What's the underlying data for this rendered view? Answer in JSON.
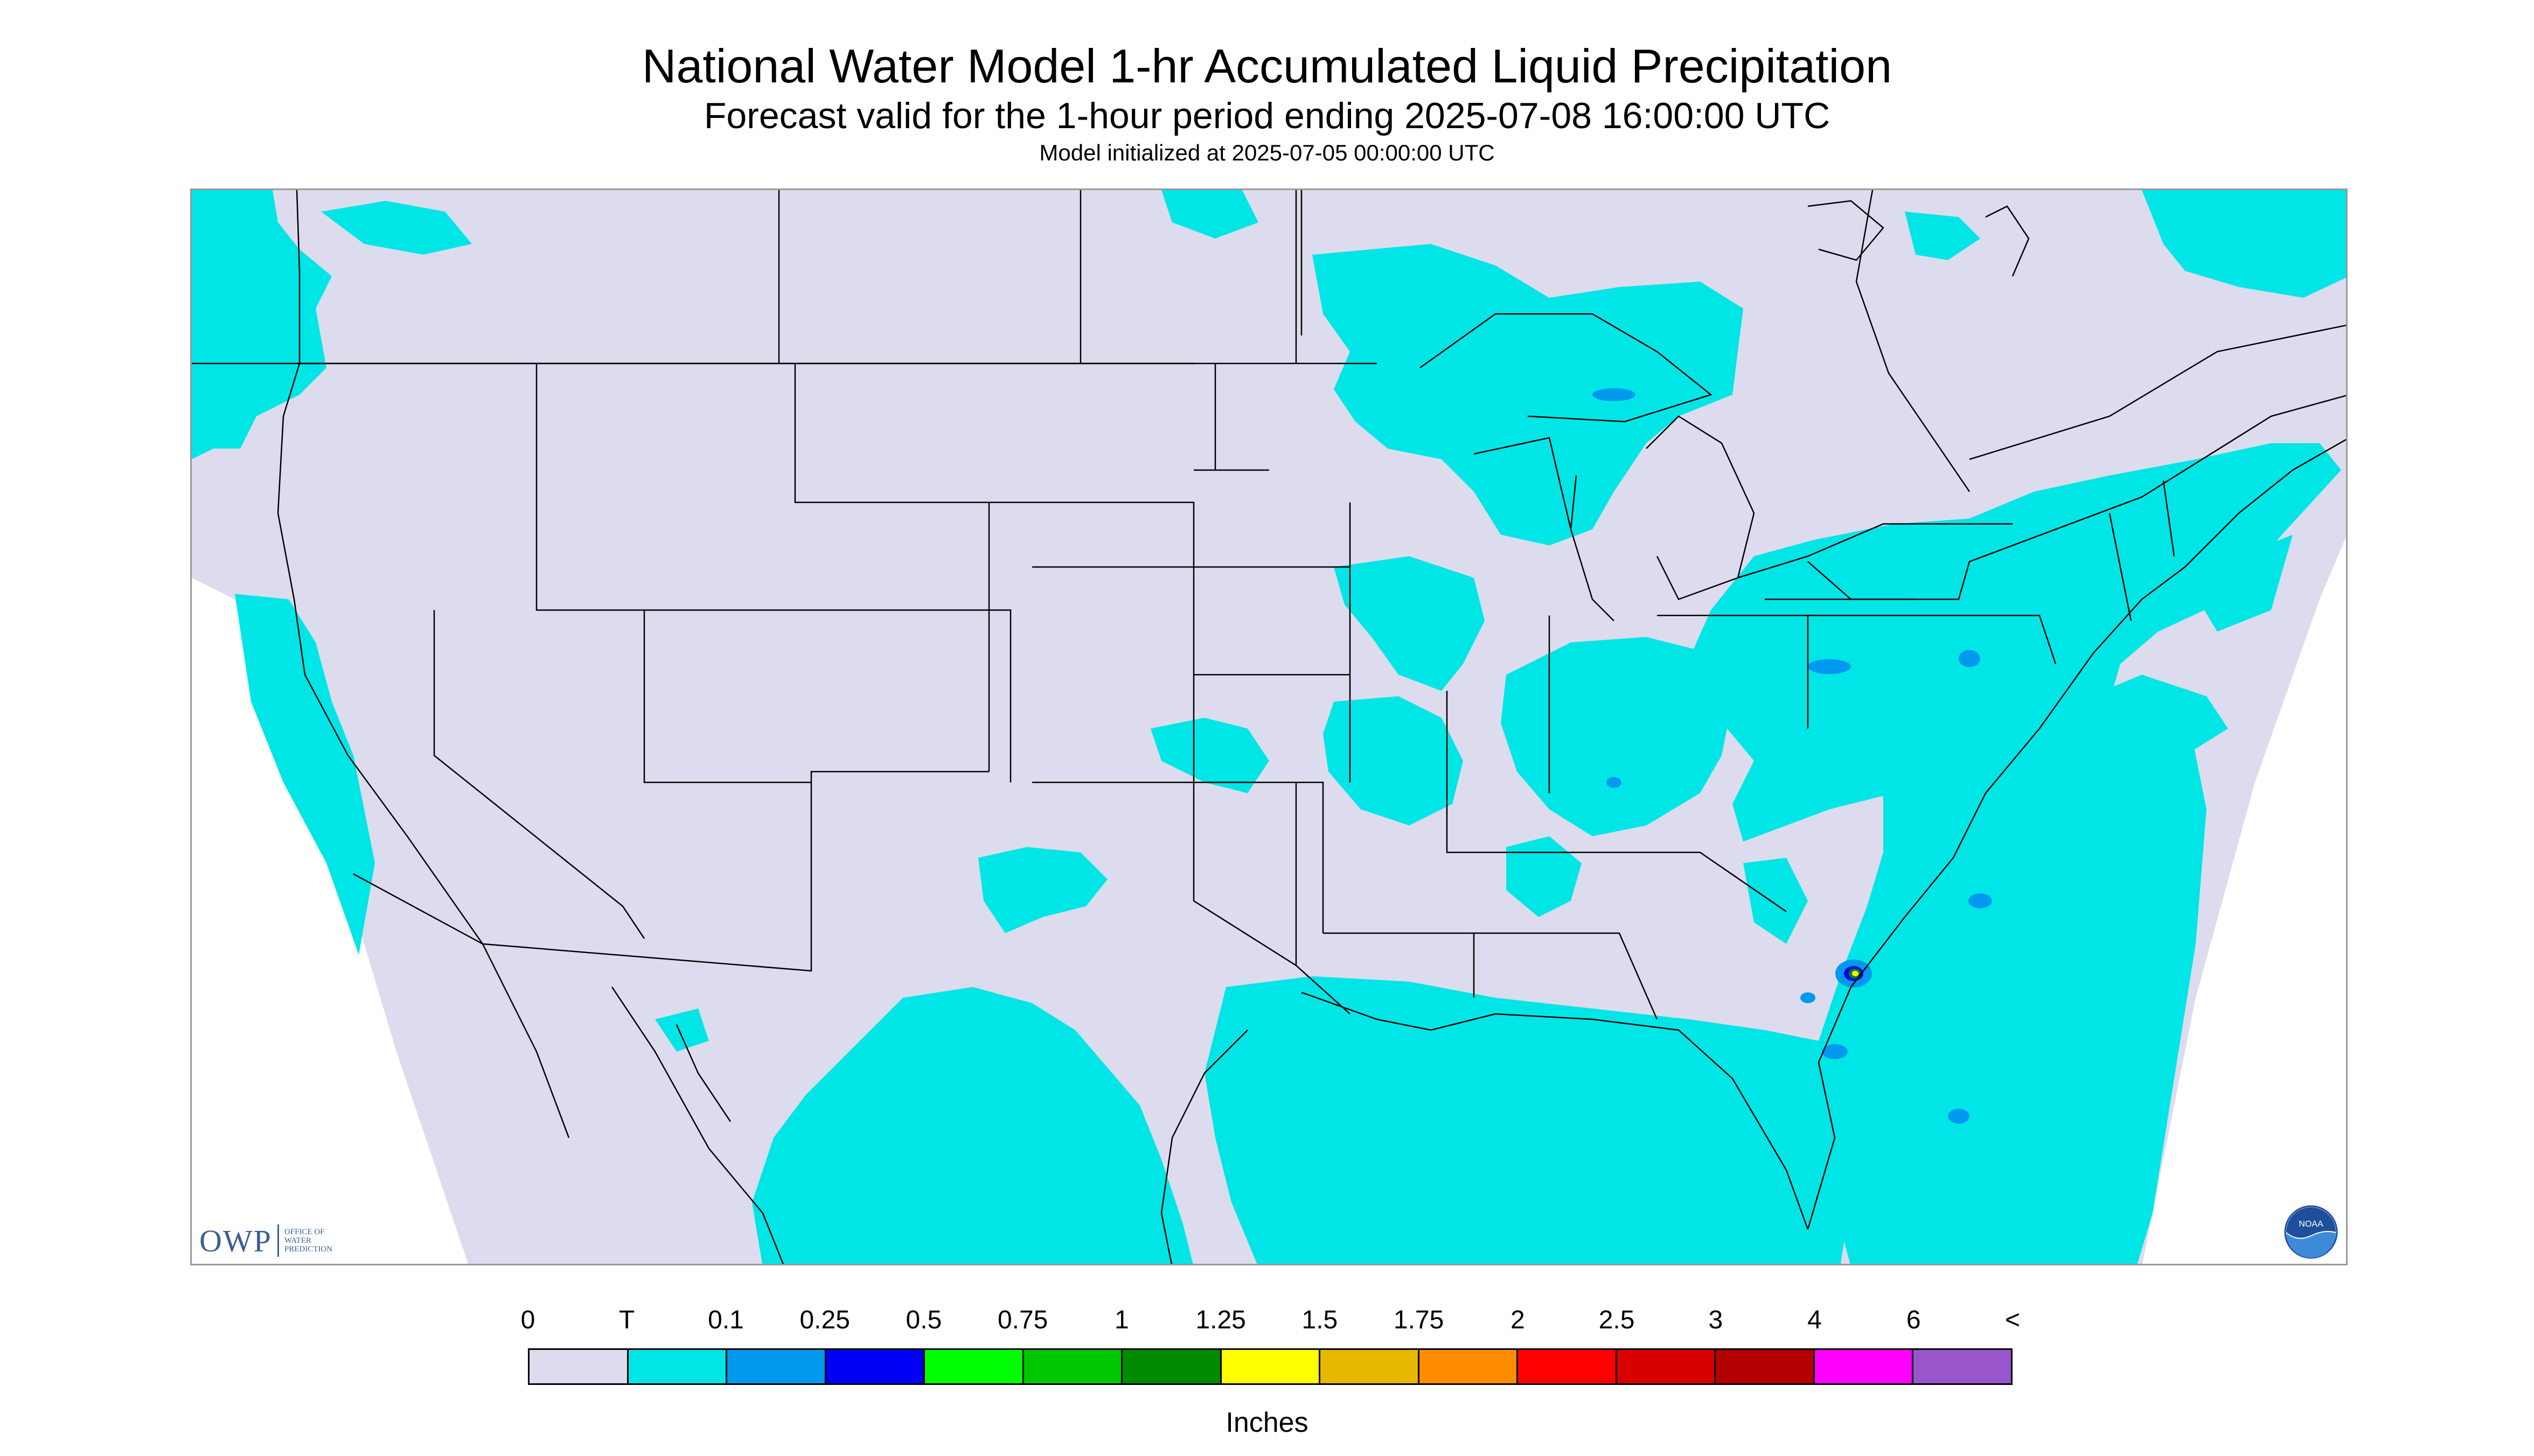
{
  "header": {
    "title": "National Water Model 1-hr Accumulated Liquid Precipitation",
    "subtitle": "Forecast valid for the 1-hour period ending 2025-07-08 16:00:00 UTC",
    "init_line": "Model initialized at 2025-07-05 00:00:00 UTC"
  },
  "map": {
    "extent": "Continental United States",
    "background_color": "#dcdcee",
    "no_data_color": "#ffffff",
    "boundary_color": "#000000"
  },
  "logos": {
    "owp_letters": "OWP",
    "owp_text_lines": [
      "OFFICE OF",
      "WATER",
      "PREDICTION"
    ],
    "noaa_text": "NOAA"
  },
  "legend": {
    "labels": [
      "0",
      "T",
      "0.1",
      "0.25",
      "0.5",
      "0.75",
      "1",
      "1.25",
      "1.5",
      "1.75",
      "2",
      "2.5",
      "3",
      "4",
      "6",
      "<"
    ],
    "colors": [
      "#dcdcee",
      "#00e6e6",
      "#0099ee",
      "#0000f5",
      "#00ff00",
      "#00c800",
      "#008b00",
      "#ffff00",
      "#e6b800",
      "#ff8c00",
      "#ff0000",
      "#d90000",
      "#b30000",
      "#ff00ff",
      "#9955cc"
    ],
    "units": "Inches"
  }
}
